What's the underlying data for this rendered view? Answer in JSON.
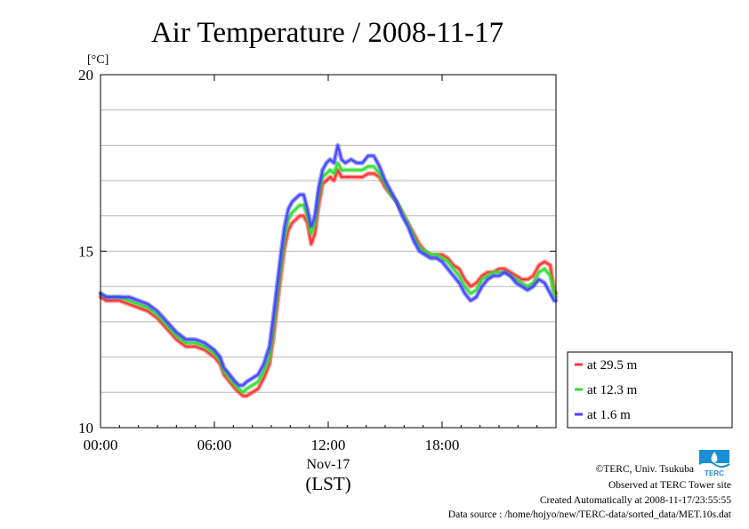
{
  "chart_data": {
    "type": "line",
    "title": "Air Temperature / 2008-11-17",
    "ylabel": "[°C]",
    "xlabel": "(LST)",
    "x_date_label": "Nov-17",
    "x_unit": "hour",
    "xlim": [
      0,
      24
    ],
    "ylim": [
      10,
      20
    ],
    "y_ticks": [
      10,
      15,
      20
    ],
    "y_tick_labels": [
      "10",
      "15",
      "20"
    ],
    "y_grid_step": 1,
    "x_ticks": [
      0,
      6,
      12,
      18
    ],
    "x_tick_labels": [
      "00:00",
      "06:00",
      "12:00",
      "18:00"
    ],
    "grid": true,
    "legend_position": "outside-right-bottom",
    "series": [
      {
        "name": "at 29.5 m",
        "color": "#ff3333",
        "points": [
          [
            0,
            13.7
          ],
          [
            0.3,
            13.6
          ],
          [
            0.6,
            13.6
          ],
          [
            1.0,
            13.6
          ],
          [
            1.5,
            13.5
          ],
          [
            2.0,
            13.4
          ],
          [
            2.5,
            13.3
          ],
          [
            3.0,
            13.1
          ],
          [
            3.5,
            12.8
          ],
          [
            4.0,
            12.5
          ],
          [
            4.5,
            12.3
          ],
          [
            5.0,
            12.3
          ],
          [
            5.5,
            12.2
          ],
          [
            6.0,
            12.0
          ],
          [
            6.3,
            11.8
          ],
          [
            6.5,
            11.5
          ],
          [
            6.8,
            11.3
          ],
          [
            7.1,
            11.1
          ],
          [
            7.3,
            11.0
          ],
          [
            7.5,
            10.9
          ],
          [
            7.7,
            10.9
          ],
          [
            8.0,
            11.0
          ],
          [
            8.3,
            11.1
          ],
          [
            8.6,
            11.4
          ],
          [
            8.9,
            11.8
          ],
          [
            9.1,
            12.5
          ],
          [
            9.3,
            13.4
          ],
          [
            9.5,
            14.3
          ],
          [
            9.7,
            15.1
          ],
          [
            9.9,
            15.6
          ],
          [
            10.1,
            15.8
          ],
          [
            10.3,
            15.9
          ],
          [
            10.5,
            16.0
          ],
          [
            10.7,
            16.0
          ],
          [
            10.9,
            15.8
          ],
          [
            11.1,
            15.2
          ],
          [
            11.3,
            15.5
          ],
          [
            11.5,
            16.3
          ],
          [
            11.7,
            16.9
          ],
          [
            11.9,
            17.0
          ],
          [
            12.1,
            17.1
          ],
          [
            12.3,
            17.0
          ],
          [
            12.5,
            17.3
          ],
          [
            12.7,
            17.1
          ],
          [
            12.9,
            17.1
          ],
          [
            13.2,
            17.1
          ],
          [
            13.5,
            17.1
          ],
          [
            13.8,
            17.1
          ],
          [
            14.1,
            17.2
          ],
          [
            14.4,
            17.2
          ],
          [
            14.7,
            17.1
          ],
          [
            15.0,
            16.8
          ],
          [
            15.3,
            16.6
          ],
          [
            15.6,
            16.4
          ],
          [
            15.9,
            16.1
          ],
          [
            16.2,
            15.8
          ],
          [
            16.5,
            15.5
          ],
          [
            16.8,
            15.2
          ],
          [
            17.1,
            15.0
          ],
          [
            17.4,
            14.9
          ],
          [
            17.7,
            14.9
          ],
          [
            18.0,
            14.9
          ],
          [
            18.3,
            14.8
          ],
          [
            18.6,
            14.6
          ],
          [
            18.9,
            14.5
          ],
          [
            19.2,
            14.2
          ],
          [
            19.5,
            14.0
          ],
          [
            19.8,
            14.1
          ],
          [
            20.1,
            14.3
          ],
          [
            20.4,
            14.4
          ],
          [
            20.7,
            14.4
          ],
          [
            21.0,
            14.5
          ],
          [
            21.3,
            14.5
          ],
          [
            21.6,
            14.4
          ],
          [
            21.9,
            14.3
          ],
          [
            22.2,
            14.2
          ],
          [
            22.5,
            14.2
          ],
          [
            22.8,
            14.3
          ],
          [
            23.1,
            14.6
          ],
          [
            23.4,
            14.7
          ],
          [
            23.7,
            14.6
          ],
          [
            23.9,
            13.9
          ],
          [
            24,
            13.8
          ]
        ]
      },
      {
        "name": "at 12.3 m",
        "color": "#33dd33",
        "points": [
          [
            0,
            13.8
          ],
          [
            0.3,
            13.7
          ],
          [
            0.6,
            13.7
          ],
          [
            1.0,
            13.7
          ],
          [
            1.5,
            13.6
          ],
          [
            2.0,
            13.5
          ],
          [
            2.5,
            13.4
          ],
          [
            3.0,
            13.2
          ],
          [
            3.5,
            12.9
          ],
          [
            4.0,
            12.6
          ],
          [
            4.5,
            12.4
          ],
          [
            5.0,
            12.4
          ],
          [
            5.5,
            12.3
          ],
          [
            6.0,
            12.1
          ],
          [
            6.3,
            11.9
          ],
          [
            6.5,
            11.6
          ],
          [
            6.8,
            11.4
          ],
          [
            7.1,
            11.2
          ],
          [
            7.3,
            11.1
          ],
          [
            7.5,
            11.0
          ],
          [
            7.7,
            11.1
          ],
          [
            8.0,
            11.2
          ],
          [
            8.3,
            11.3
          ],
          [
            8.6,
            11.6
          ],
          [
            8.9,
            12.0
          ],
          [
            9.1,
            12.8
          ],
          [
            9.3,
            13.7
          ],
          [
            9.5,
            14.6
          ],
          [
            9.7,
            15.4
          ],
          [
            9.9,
            15.9
          ],
          [
            10.1,
            16.1
          ],
          [
            10.3,
            16.2
          ],
          [
            10.5,
            16.3
          ],
          [
            10.7,
            16.3
          ],
          [
            10.9,
            16.0
          ],
          [
            11.1,
            15.5
          ],
          [
            11.3,
            15.8
          ],
          [
            11.5,
            16.6
          ],
          [
            11.7,
            17.1
          ],
          [
            11.9,
            17.2
          ],
          [
            12.1,
            17.3
          ],
          [
            12.3,
            17.2
          ],
          [
            12.5,
            17.5
          ],
          [
            12.7,
            17.3
          ],
          [
            12.9,
            17.3
          ],
          [
            13.2,
            17.3
          ],
          [
            13.5,
            17.3
          ],
          [
            13.8,
            17.3
          ],
          [
            14.1,
            17.4
          ],
          [
            14.4,
            17.4
          ],
          [
            14.7,
            17.2
          ],
          [
            15.0,
            16.9
          ],
          [
            15.3,
            16.6
          ],
          [
            15.6,
            16.4
          ],
          [
            15.9,
            16.1
          ],
          [
            16.2,
            15.8
          ],
          [
            16.5,
            15.4
          ],
          [
            16.8,
            15.1
          ],
          [
            17.1,
            15.0
          ],
          [
            17.4,
            14.9
          ],
          [
            17.7,
            14.9
          ],
          [
            18.0,
            14.8
          ],
          [
            18.3,
            14.7
          ],
          [
            18.6,
            14.5
          ],
          [
            18.9,
            14.3
          ],
          [
            19.2,
            14.0
          ],
          [
            19.5,
            13.8
          ],
          [
            19.8,
            13.9
          ],
          [
            20.1,
            14.2
          ],
          [
            20.4,
            14.3
          ],
          [
            20.7,
            14.4
          ],
          [
            21.0,
            14.4
          ],
          [
            21.3,
            14.4
          ],
          [
            21.6,
            14.3
          ],
          [
            21.9,
            14.2
          ],
          [
            22.2,
            14.1
          ],
          [
            22.5,
            14.0
          ],
          [
            22.8,
            14.1
          ],
          [
            23.1,
            14.4
          ],
          [
            23.4,
            14.5
          ],
          [
            23.7,
            14.3
          ],
          [
            23.9,
            13.8
          ],
          [
            24,
            13.7
          ]
        ]
      },
      {
        "name": "at 1.6 m",
        "color": "#4444ff",
        "points": [
          [
            0,
            13.8
          ],
          [
            0.3,
            13.7
          ],
          [
            0.6,
            13.7
          ],
          [
            1.0,
            13.7
          ],
          [
            1.5,
            13.7
          ],
          [
            2.0,
            13.6
          ],
          [
            2.5,
            13.5
          ],
          [
            3.0,
            13.3
          ],
          [
            3.5,
            13.0
          ],
          [
            4.0,
            12.7
          ],
          [
            4.5,
            12.5
          ],
          [
            5.0,
            12.5
          ],
          [
            5.5,
            12.4
          ],
          [
            6.0,
            12.2
          ],
          [
            6.3,
            12.0
          ],
          [
            6.5,
            11.7
          ],
          [
            6.8,
            11.5
          ],
          [
            7.1,
            11.3
          ],
          [
            7.3,
            11.2
          ],
          [
            7.5,
            11.2
          ],
          [
            7.7,
            11.3
          ],
          [
            8.0,
            11.4
          ],
          [
            8.3,
            11.5
          ],
          [
            8.6,
            11.8
          ],
          [
            8.9,
            12.3
          ],
          [
            9.1,
            13.1
          ],
          [
            9.3,
            14.0
          ],
          [
            9.5,
            14.9
          ],
          [
            9.7,
            15.7
          ],
          [
            9.9,
            16.2
          ],
          [
            10.1,
            16.4
          ],
          [
            10.3,
            16.5
          ],
          [
            10.5,
            16.6
          ],
          [
            10.7,
            16.6
          ],
          [
            10.9,
            16.2
          ],
          [
            11.1,
            15.7
          ],
          [
            11.3,
            16.0
          ],
          [
            11.5,
            16.8
          ],
          [
            11.7,
            17.3
          ],
          [
            11.9,
            17.5
          ],
          [
            12.1,
            17.6
          ],
          [
            12.3,
            17.5
          ],
          [
            12.5,
            18.0
          ],
          [
            12.7,
            17.6
          ],
          [
            12.9,
            17.5
          ],
          [
            13.2,
            17.6
          ],
          [
            13.5,
            17.5
          ],
          [
            13.8,
            17.5
          ],
          [
            14.1,
            17.7
          ],
          [
            14.4,
            17.7
          ],
          [
            14.7,
            17.4
          ],
          [
            15.0,
            17.0
          ],
          [
            15.3,
            16.7
          ],
          [
            15.6,
            16.4
          ],
          [
            15.9,
            16.0
          ],
          [
            16.2,
            15.7
          ],
          [
            16.5,
            15.3
          ],
          [
            16.8,
            15.0
          ],
          [
            17.1,
            14.9
          ],
          [
            17.4,
            14.8
          ],
          [
            17.7,
            14.8
          ],
          [
            18.0,
            14.7
          ],
          [
            18.3,
            14.5
          ],
          [
            18.6,
            14.3
          ],
          [
            18.9,
            14.1
          ],
          [
            19.2,
            13.8
          ],
          [
            19.5,
            13.6
          ],
          [
            19.8,
            13.7
          ],
          [
            20.1,
            14.0
          ],
          [
            20.4,
            14.2
          ],
          [
            20.7,
            14.3
          ],
          [
            21.0,
            14.3
          ],
          [
            21.3,
            14.4
          ],
          [
            21.6,
            14.3
          ],
          [
            21.9,
            14.1
          ],
          [
            22.2,
            14.0
          ],
          [
            22.5,
            13.9
          ],
          [
            22.8,
            14.0
          ],
          [
            23.1,
            14.2
          ],
          [
            23.4,
            14.1
          ],
          [
            23.7,
            13.8
          ],
          [
            23.9,
            13.6
          ],
          [
            24,
            13.6
          ]
        ]
      }
    ]
  },
  "credits": {
    "copyright": "©TERC, Univ. Tsukuba",
    "site": "Observed at TERC Tower site",
    "created": "Created Automatically at 2008-11-17/23:55:55",
    "source": "Data source : /home/hojyo/new/TERC-data/sorted_data/MET.10s.dat"
  },
  "logo": {
    "text": "TERC",
    "color": "#1a8fd6"
  }
}
